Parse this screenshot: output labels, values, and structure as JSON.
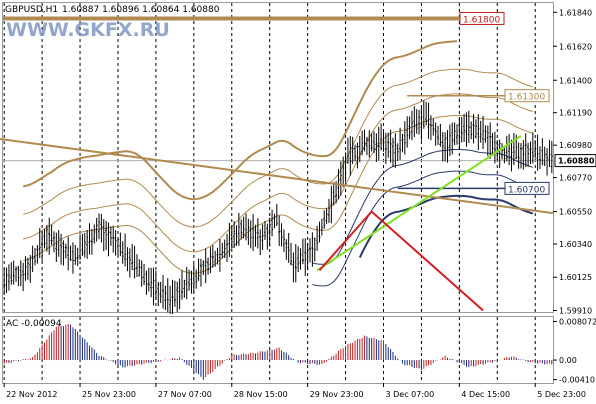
{
  "header": {
    "symbol": "GBPUSD,H1",
    "ohlc": "1.60887 1.60896 1.60864 1.60880",
    "watermark": "WWW.GKFX.RU"
  },
  "chart_data": {
    "type": "candlestick",
    "symbol": "GBPUSD",
    "timeframe": "H1",
    "price_axis": {
      "ylim": [
        1.599,
        1.619
      ],
      "ticks": [
        "1.61840",
        "1.61620",
        "1.61400",
        "1.61190",
        "1.60980",
        "1.60770",
        "1.60550",
        "1.60340",
        "1.60125",
        "1.59910"
      ],
      "tick_values": [
        1.6184,
        1.6162,
        1.614,
        1.6119,
        1.6098,
        1.6077,
        1.6055,
        1.6034,
        1.60125,
        1.5991
      ],
      "current_price": 1.6088,
      "current_price_label": "1.60880"
    },
    "time_axis": {
      "labels": [
        "22 Nov 2012",
        "25 Nov 23:00",
        "27 Nov 07:00",
        "28 Nov 15:00",
        "29 Nov 23:00",
        "3 Dec 07:00",
        "4 Dec 15:00",
        "5 Dec 23:00"
      ],
      "label_positions": [
        0,
        32,
        64,
        96,
        128,
        160,
        192,
        224
      ],
      "gridlines_at_bars": [
        0,
        16,
        32,
        48,
        64,
        80,
        96,
        112,
        128,
        144,
        160,
        176,
        192,
        208,
        224
      ],
      "bar_count": 232
    },
    "levels": [
      {
        "label": "1.61800",
        "value": 1.618,
        "color": "#c02020"
      },
      {
        "label": "1.61300",
        "value": 1.613,
        "color": "#b08a50"
      },
      {
        "label": "1.60700",
        "value": 1.607,
        "color": "#2a3a6a"
      }
    ],
    "price_path": [
      {
        "bar": 0,
        "price": 1.601
      },
      {
        "bar": 10,
        "price": 1.6018
      },
      {
        "bar": 18,
        "price": 1.604
      },
      {
        "bar": 30,
        "price": 1.6025
      },
      {
        "bar": 40,
        "price": 1.6045
      },
      {
        "bar": 50,
        "price": 1.603
      },
      {
        "bar": 62,
        "price": 1.6008
      },
      {
        "bar": 70,
        "price": 1.5998
      },
      {
        "bar": 80,
        "price": 1.6012
      },
      {
        "bar": 92,
        "price": 1.603
      },
      {
        "bar": 100,
        "price": 1.6045
      },
      {
        "bar": 108,
        "price": 1.6038
      },
      {
        "bar": 115,
        "price": 1.605
      },
      {
        "bar": 122,
        "price": 1.602
      },
      {
        "bar": 130,
        "price": 1.603
      },
      {
        "bar": 138,
        "price": 1.606
      },
      {
        "bar": 145,
        "price": 1.609
      },
      {
        "bar": 152,
        "price": 1.6098
      },
      {
        "bar": 158,
        "price": 1.61
      },
      {
        "bar": 166,
        "price": 1.6095
      },
      {
        "bar": 172,
        "price": 1.611
      },
      {
        "bar": 178,
        "price": 1.6115
      },
      {
        "bar": 186,
        "price": 1.6098
      },
      {
        "bar": 194,
        "price": 1.611
      },
      {
        "bar": 202,
        "price": 1.6105
      },
      {
        "bar": 212,
        "price": 1.6092
      },
      {
        "bar": 222,
        "price": 1.6095
      },
      {
        "bar": 231,
        "price": 1.6088
      }
    ],
    "trendlines": [
      {
        "name": "descending-trend",
        "color": "#b08a50",
        "from": {
          "bar": -2,
          "price": 1.6102
        },
        "to": {
          "bar": 240,
          "price": 1.6054
        }
      },
      {
        "name": "ascending-trend",
        "color": "#80e020",
        "from": {
          "bar": 132,
          "price": 1.6017
        },
        "to": {
          "bar": 218,
          "price": 1.6104
        }
      },
      {
        "name": "red-zigzag",
        "color": "#d02020",
        "points": [
          {
            "bar": 133,
            "price": 1.6017
          },
          {
            "bar": 155,
            "price": 1.6055
          },
          {
            "bar": 202,
            "price": 1.5991
          }
        ]
      }
    ],
    "oscillator": {
      "name": "AC",
      "value_label": "AC -0.00094",
      "ticks": [
        "0.008072",
        "0.00",
        "-0.00410"
      ],
      "tick_values": [
        0.008072,
        0.0,
        -0.0041
      ],
      "ylim": [
        -0.0048,
        0.009
      ],
      "up_color": "#c02020",
      "down_color": "#1a2a80",
      "points": [
        {
          "bar": 0,
          "value": -0.0008
        },
        {
          "bar": 12,
          "value": 0.0005
        },
        {
          "bar": 22,
          "value": 0.007
        },
        {
          "bar": 28,
          "value": 0.0075
        },
        {
          "bar": 40,
          "value": 0.001
        },
        {
          "bar": 50,
          "value": -0.0015
        },
        {
          "bar": 62,
          "value": -0.0005
        },
        {
          "bar": 74,
          "value": 0.0005
        },
        {
          "bar": 84,
          "value": -0.004
        },
        {
          "bar": 96,
          "value": 0.001
        },
        {
          "bar": 106,
          "value": 0.0015
        },
        {
          "bar": 116,
          "value": 0.0025
        },
        {
          "bar": 124,
          "value": -0.0005
        },
        {
          "bar": 134,
          "value": -0.001
        },
        {
          "bar": 144,
          "value": 0.003
        },
        {
          "bar": 152,
          "value": 0.005
        },
        {
          "bar": 160,
          "value": 0.004
        },
        {
          "bar": 168,
          "value": -0.0008
        },
        {
          "bar": 176,
          "value": -0.002
        },
        {
          "bar": 186,
          "value": 0.0008
        },
        {
          "bar": 196,
          "value": -0.0015
        },
        {
          "bar": 206,
          "value": -0.0004
        },
        {
          "bar": 214,
          "value": 0.0008
        },
        {
          "bar": 222,
          "value": -0.0005
        },
        {
          "bar": 231,
          "value": -0.0009
        }
      ]
    }
  }
}
